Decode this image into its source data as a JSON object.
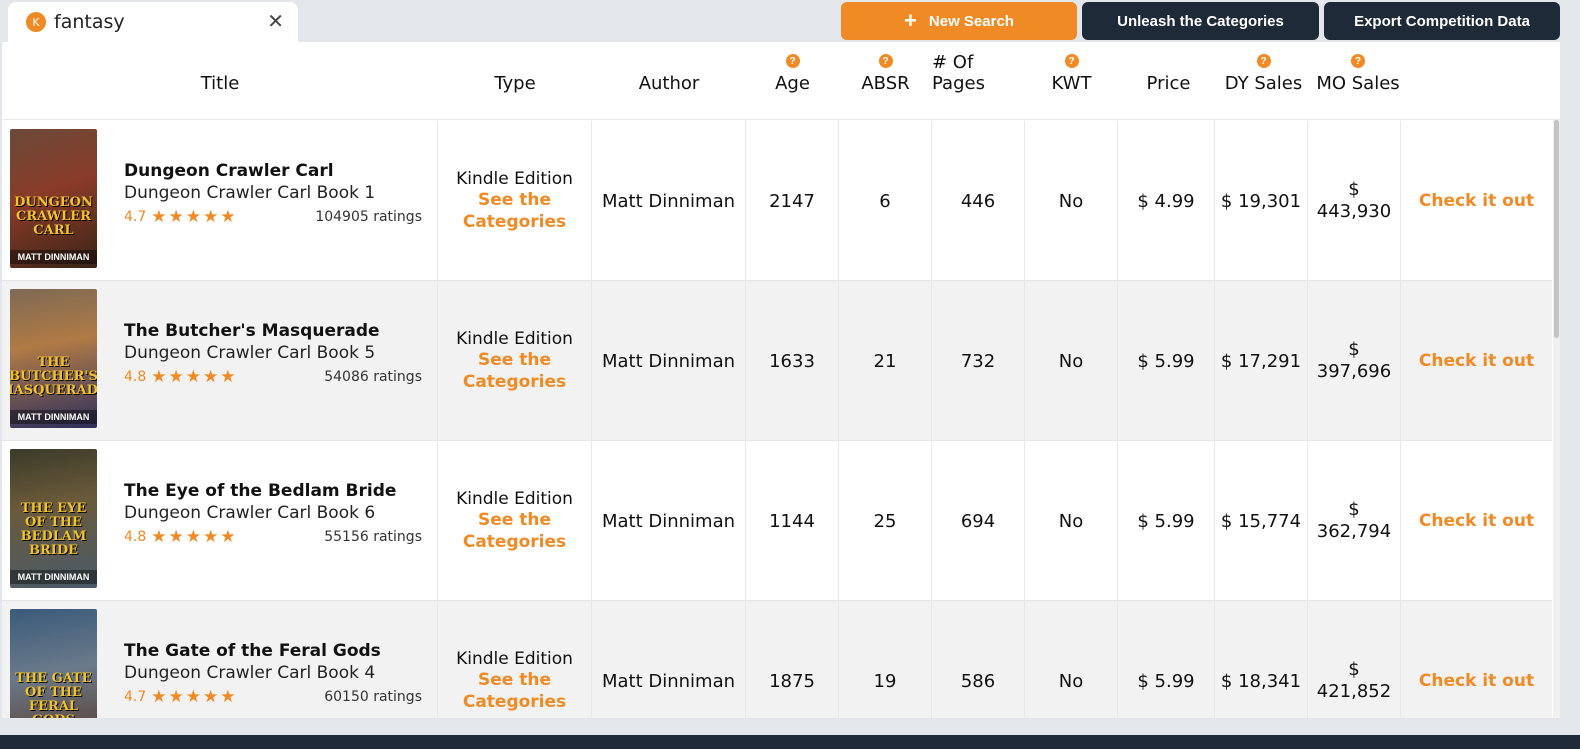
{
  "search": {
    "value": "fantasy",
    "avatar_letter": "K",
    "close_symbol": "✕"
  },
  "toolbar": {
    "new_search_label": "New Search",
    "new_search_icon": "+",
    "unleash_label": "Unleash the Categories",
    "export_label": "Export Competition Data"
  },
  "colors": {
    "accent": "#f08a24",
    "dark": "#1e2a38",
    "alt_row": "#f2f2f2"
  },
  "headers": {
    "title": "Title",
    "type": "Type",
    "author": "Author",
    "age": "Age",
    "absr": "ABSR",
    "pages": "# Of Pages",
    "kwt": "KWT",
    "price": "Price",
    "dy_sales": "DY Sales",
    "mo_sales": "MO Sales",
    "help_symbol": "?"
  },
  "rows": [
    {
      "title": "Dungeon Crawler Carl",
      "series": "Dungeon Crawler Carl Book 1",
      "rating": "4.7",
      "stars": "★★★★★",
      "ratings": "104905 ratings",
      "type": "Kindle Edition",
      "type_link": "See the Categories",
      "author": "Matt Dinniman",
      "age": "2147",
      "absr": "6",
      "pages": "446",
      "kwt": "No",
      "price": "$ 4.99",
      "dy_sales": "$ 19,301",
      "mo_currency": "$",
      "mo_value": "443,930",
      "action": "Check it out",
      "cover_title": "DUNGEON CRAWLER CARL",
      "cover_author": "MATT DINNIMAN"
    },
    {
      "title": "The Butcher's Masquerade",
      "series": "Dungeon Crawler Carl Book 5",
      "rating": "4.8",
      "stars": "★★★★★",
      "ratings": "54086 ratings",
      "type": "Kindle Edition",
      "type_link": "See the Categories",
      "author": "Matt Dinniman",
      "age": "1633",
      "absr": "21",
      "pages": "732",
      "kwt": "No",
      "price": "$ 5.99",
      "dy_sales": "$ 17,291",
      "mo_currency": "$",
      "mo_value": "397,696",
      "action": "Check it out",
      "cover_title": "THE BUTCHER'S MASQUERADE",
      "cover_author": "MATT DINNIMAN"
    },
    {
      "title": "The Eye of the Bedlam Bride",
      "series": "Dungeon Crawler Carl Book 6",
      "rating": "4.8",
      "stars": "★★★★★",
      "ratings": "55156 ratings",
      "type": "Kindle Edition",
      "type_link": "See the Categories",
      "author": "Matt Dinniman",
      "age": "1144",
      "absr": "25",
      "pages": "694",
      "kwt": "No",
      "price": "$ 5.99",
      "dy_sales": "$ 15,774",
      "mo_currency": "$",
      "mo_value": "362,794",
      "action": "Check it out",
      "cover_title": "THE EYE OF THE BEDLAM BRIDE",
      "cover_author": "MATT DINNIMAN"
    },
    {
      "title": "The Gate of the Feral Gods",
      "series": "Dungeon Crawler Carl Book 4",
      "rating": "4.7",
      "stars": "★★★★★",
      "ratings": "60150 ratings",
      "type": "Kindle Edition",
      "type_link": "See the Categories",
      "author": "Matt Dinniman",
      "age": "1875",
      "absr": "19",
      "pages": "586",
      "kwt": "No",
      "price": "$ 5.99",
      "dy_sales": "$ 18,341",
      "mo_currency": "$",
      "mo_value": "421,852",
      "action": "Check it out",
      "cover_title": "THE GATE OF THE FERAL GODS",
      "cover_author": ""
    }
  ]
}
